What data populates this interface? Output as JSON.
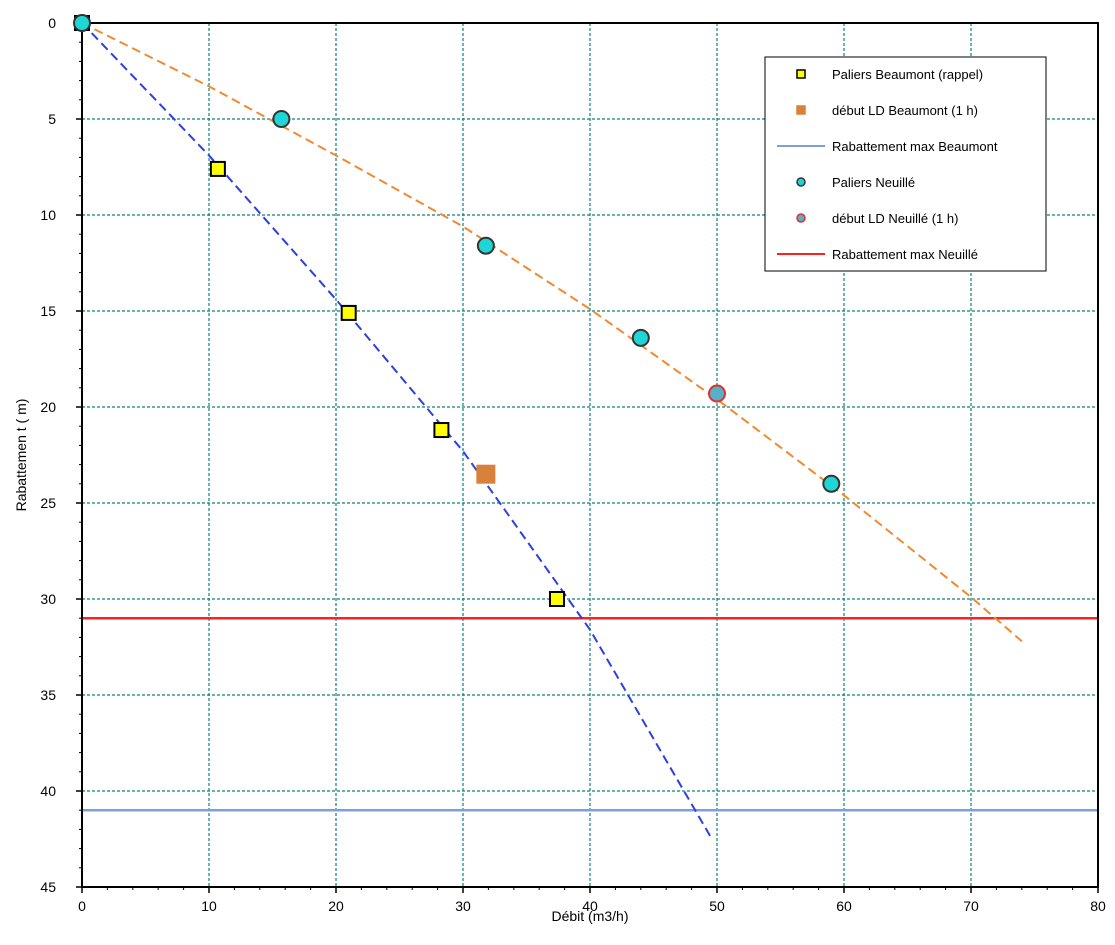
{
  "chart_data": {
    "type": "scatter",
    "title": "",
    "xlabel": "Débit (m3/h)",
    "ylabel": "Rabattemen t ( m)",
    "xlim": [
      0,
      80
    ],
    "ylim": [
      0,
      45
    ],
    "y_inverted": true,
    "x_ticks": [
      0,
      10,
      20,
      30,
      40,
      50,
      60,
      70,
      80
    ],
    "y_ticks": [
      0,
      5,
      10,
      15,
      20,
      25,
      30,
      35,
      40,
      45
    ],
    "grid": true,
    "legend_position": "top-right",
    "series": [
      {
        "name": "Paliers Beaumont (rappel)",
        "kind": "marker-square",
        "fill": "#ffff00",
        "stroke": "#000000",
        "points": [
          [
            0,
            0
          ],
          [
            10.7,
            7.6
          ],
          [
            21,
            15.1
          ],
          [
            28.3,
            21.2
          ],
          [
            37.4,
            30
          ]
        ]
      },
      {
        "name": "début LD Beaumont (1 h)",
        "kind": "marker-square",
        "fill": "#d9803a",
        "stroke": "#d9803a",
        "points": [
          [
            31.8,
            23.5
          ]
        ]
      },
      {
        "name": "Rabattement max Beaumont",
        "kind": "hline",
        "color": "#7f9fd8",
        "y": 41
      },
      {
        "name": "Paliers Neuillé",
        "kind": "marker-circle",
        "fill": "#1fd6d6",
        "stroke": "#333333",
        "points": [
          [
            0,
            0
          ],
          [
            15.7,
            5
          ],
          [
            31.8,
            11.6
          ],
          [
            44,
            16.4
          ],
          [
            59,
            24
          ]
        ]
      },
      {
        "name": "début LD Neuillé (1 h)",
        "kind": "marker-circle",
        "fill": "#55b0c8",
        "stroke": "#e03030",
        "points": [
          [
            50,
            19.3
          ]
        ]
      },
      {
        "name": "Rabattement max Neuillé",
        "kind": "hline",
        "color": "#ff2020",
        "y": 31
      }
    ],
    "trendlines": [
      {
        "color": "#2e3fe0",
        "dashed": true,
        "points": [
          [
            0,
            0
          ],
          [
            10,
            6.9
          ],
          [
            20,
            14.4
          ],
          [
            30,
            22.3
          ],
          [
            40,
            31.6
          ],
          [
            49.6,
            42.5
          ]
        ]
      },
      {
        "color": "#f08a30",
        "dashed": true,
        "points": [
          [
            0,
            0
          ],
          [
            10,
            3.3
          ],
          [
            20,
            6.9
          ],
          [
            30,
            10.6
          ],
          [
            40,
            14.9
          ],
          [
            50,
            19.6
          ],
          [
            60,
            24.6
          ],
          [
            70,
            29.9
          ],
          [
            74,
            32.2
          ]
        ]
      }
    ]
  }
}
